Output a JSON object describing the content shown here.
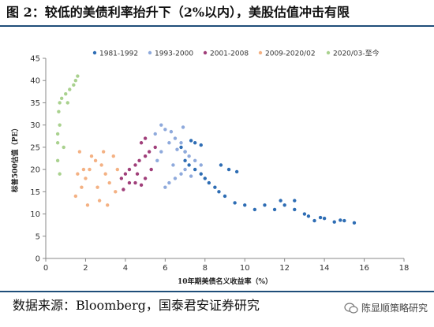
{
  "title": "图 2：较低的美债利率抬升下（2%以内），美股估值冲击有限",
  "source": "数据来源：Bloomberg，国泰君安证券研究",
  "watermark": "陈显顺策略研究",
  "chart_data": {
    "type": "scatter",
    "xlabel": "10年期美债名义收益率（%）",
    "ylabel": "标普500估值（PE）",
    "xlim": [
      0,
      18
    ],
    "ylim": [
      0,
      45
    ],
    "xticks": [
      0,
      2,
      4,
      6,
      8,
      10,
      12,
      14,
      16,
      18
    ],
    "yticks": [
      0,
      5,
      10,
      15,
      20,
      25,
      30,
      35,
      40,
      45
    ],
    "legend_position": "top",
    "series": [
      {
        "name": "1981-1992",
        "color": "#2e6db4",
        "points": [
          [
            15.5,
            8
          ],
          [
            15.0,
            8.5
          ],
          [
            14.5,
            8.2
          ],
          [
            14.0,
            9
          ],
          [
            13.5,
            8.5
          ],
          [
            13.2,
            9.5
          ],
          [
            13.0,
            10
          ],
          [
            12.5,
            11
          ],
          [
            12.0,
            12
          ],
          [
            11.8,
            13
          ],
          [
            11.5,
            11
          ],
          [
            11.0,
            12
          ],
          [
            10.5,
            11
          ],
          [
            10.0,
            12
          ],
          [
            9.5,
            12.5
          ],
          [
            9.0,
            14
          ],
          [
            8.7,
            15
          ],
          [
            8.5,
            16
          ],
          [
            8.2,
            17
          ],
          [
            8.0,
            18
          ],
          [
            7.8,
            19
          ],
          [
            7.5,
            20
          ],
          [
            7.2,
            21
          ],
          [
            7.0,
            22
          ],
          [
            8.8,
            21
          ],
          [
            9.2,
            20
          ],
          [
            9.6,
            19.5
          ],
          [
            7.5,
            26
          ],
          [
            7.8,
            25.5
          ],
          [
            7.3,
            26.5
          ],
          [
            6.8,
            25
          ],
          [
            7.0,
            24
          ],
          [
            12.5,
            13
          ],
          [
            13.8,
            9.2
          ],
          [
            14.8,
            8.6
          ]
        ]
      },
      {
        "name": "1993-2000",
        "color": "#8faadc",
        "points": [
          [
            5.5,
            28
          ],
          [
            5.8,
            30
          ],
          [
            6.0,
            29
          ],
          [
            6.3,
            28.5
          ],
          [
            6.5,
            27
          ],
          [
            6.8,
            26
          ],
          [
            7.0,
            24
          ],
          [
            7.2,
            23
          ],
          [
            7.5,
            22
          ],
          [
            7.8,
            21
          ],
          [
            7.0,
            20
          ],
          [
            6.8,
            19
          ],
          [
            6.5,
            18
          ],
          [
            6.2,
            17
          ],
          [
            6.0,
            16
          ],
          [
            5.8,
            24
          ],
          [
            6.2,
            26
          ],
          [
            6.6,
            24.5
          ],
          [
            5.6,
            22
          ],
          [
            6.4,
            21
          ],
          [
            7.3,
            18.5
          ],
          [
            6.9,
            29.5
          ]
        ]
      },
      {
        "name": "2001-2008",
        "color": "#a03f7a",
        "points": [
          [
            3.8,
            18
          ],
          [
            4.0,
            19
          ],
          [
            4.2,
            20
          ],
          [
            4.5,
            21
          ],
          [
            4.7,
            22
          ],
          [
            5.0,
            23
          ],
          [
            5.2,
            24
          ],
          [
            5.5,
            25
          ],
          [
            4.8,
            26
          ],
          [
            5.0,
            27
          ],
          [
            4.5,
            17
          ],
          [
            4.8,
            16.5
          ],
          [
            5.0,
            18
          ],
          [
            4.2,
            17
          ],
          [
            3.9,
            15.5
          ],
          [
            5.3,
            20
          ],
          [
            4.6,
            19
          ]
        ]
      },
      {
        "name": "2009-2020/02",
        "color": "#f4b183",
        "points": [
          [
            1.5,
            14
          ],
          [
            1.8,
            16
          ],
          [
            2.0,
            18
          ],
          [
            2.2,
            20
          ],
          [
            2.5,
            22
          ],
          [
            2.8,
            21
          ],
          [
            3.0,
            19
          ],
          [
            3.2,
            17
          ],
          [
            3.5,
            15
          ],
          [
            2.6,
            16
          ],
          [
            2.3,
            23
          ],
          [
            1.9,
            20
          ],
          [
            1.7,
            24
          ],
          [
            3.4,
            23
          ],
          [
            2.9,
            24
          ],
          [
            2.1,
            12
          ],
          [
            2.7,
            13
          ],
          [
            3.6,
            20
          ],
          [
            1.6,
            19
          ],
          [
            3.1,
            12
          ]
        ]
      },
      {
        "name": "2020/03-至今",
        "color": "#a9d18e",
        "points": [
          [
            0.6,
            22
          ],
          [
            0.6,
            26
          ],
          [
            0.7,
            30
          ],
          [
            0.65,
            33
          ],
          [
            0.7,
            35
          ],
          [
            0.8,
            36
          ],
          [
            1.0,
            37
          ],
          [
            1.2,
            38
          ],
          [
            1.5,
            40
          ],
          [
            1.6,
            41
          ],
          [
            1.4,
            39
          ],
          [
            0.9,
            25
          ],
          [
            0.7,
            19
          ],
          [
            0.6,
            28
          ],
          [
            1.1,
            35
          ]
        ]
      }
    ]
  }
}
